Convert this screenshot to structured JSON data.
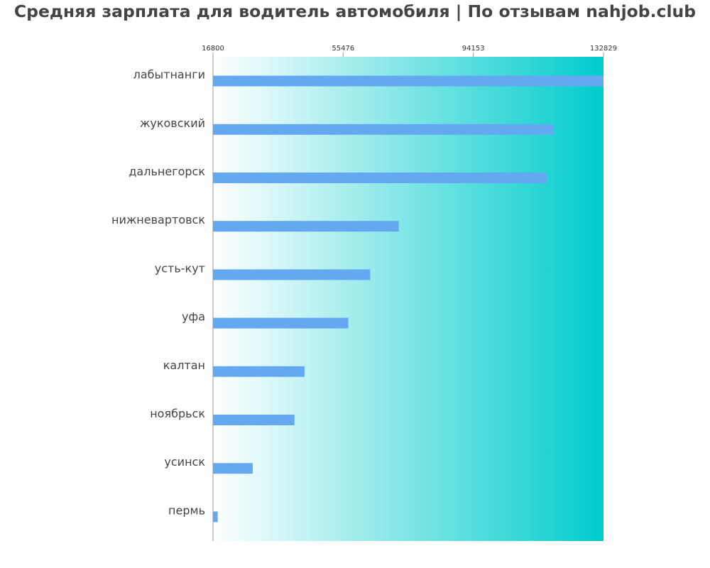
{
  "title": "Средняя зарплата для водитель автомобиля | По отзывам nahjob.club",
  "colors": {
    "bar": "#64a8f2",
    "gradient_start": "#ffffff",
    "gradient_end": "#00cccc",
    "text": "#444444",
    "axis": "#999999"
  },
  "chart_data": {
    "type": "bar",
    "orientation": "horizontal",
    "title": "Средняя зарплата для водитель автомобиля | По отзывам nahjob.club",
    "categories": [
      "лабытнанги",
      "жуковский",
      "дальнегорск",
      "нижневартовск",
      "усть-кут",
      "уфа",
      "калтан",
      "ноябрьск",
      "усинск",
      "пермь"
    ],
    "values": [
      132829,
      118000,
      116000,
      72000,
      63500,
      57000,
      44000,
      41000,
      28600,
      18200
    ],
    "xticks": [
      16800,
      55476,
      94153,
      132829
    ],
    "xlim": [
      16800,
      132829
    ],
    "xtick_position": "top",
    "grid": false,
    "legend": "none"
  }
}
